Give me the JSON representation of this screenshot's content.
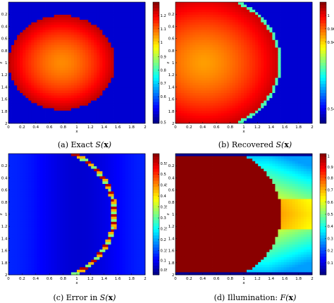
{
  "panels": [
    {
      "id": "a",
      "caption_prefix": "(a) Exact ",
      "caption_math": "S(",
      "caption_bold": "x",
      "caption_end": ")",
      "colorbar_ticks": [
        "1.2",
        "1.1",
        "1",
        "0.9",
        "0.8",
        "0.7",
        "0.6",
        "0.5"
      ],
      "colormap": "jet"
    },
    {
      "id": "b",
      "caption_prefix": "(b) Recovered ",
      "caption_math": "S(",
      "caption_bold": "x",
      "caption_end": ")",
      "colorbar_ticks": [
        "1",
        "0.96",
        "0.94",
        "0.54"
      ],
      "colormap": "jet"
    },
    {
      "id": "c",
      "caption_prefix": "(c) Error in ",
      "caption_math": "S(",
      "caption_bold": "x",
      "caption_end": ")",
      "colorbar_ticks": [
        "0.55",
        "0.5",
        "0.45",
        "0.4",
        "0.35",
        "0.3",
        "0.25",
        "0.2",
        "0.15",
        "0.1",
        "0.05"
      ],
      "colormap": "jet"
    },
    {
      "id": "d",
      "caption_prefix": "(d) Illumination: ",
      "caption_math": "F(",
      "caption_bold": "x",
      "caption_end": ")",
      "colorbar_ticks": [
        "1",
        "0.9",
        "0.8",
        "0.7",
        "0.6",
        "0.5",
        "0.4",
        "0.3",
        "0.2",
        "0.1"
      ],
      "colormap": "jet"
    }
  ],
  "axes": {
    "x_ticks": [
      "0",
      "0.2",
      "0.4",
      "0.6",
      "0.8",
      "1",
      "1.2",
      "1.4",
      "1.6",
      "1.8",
      "2"
    ],
    "y_ticks": [
      "0.2",
      "0.4",
      "0.6",
      "0.8",
      "1",
      "1.2",
      "1.4",
      "1.6",
      "1.8",
      "2"
    ],
    "xlabel": "x",
    "ylabel": "z"
  }
}
